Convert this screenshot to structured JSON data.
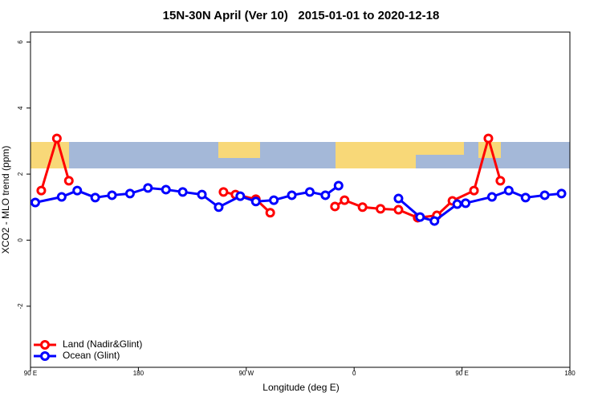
{
  "chart_data": {
    "type": "line",
    "title": "15N-30N April (Ver 10)   2015-01-01 to 2020-12-18",
    "x_label": "Longitude (deg E)",
    "y_label": "XCO2 - MLO trend (ppm)",
    "xlim": [
      90,
      540
    ],
    "xticks": [
      {
        "value": 90,
        "label": "90 E"
      },
      180,
      {
        "value": 270,
        "label": "90 W"
      },
      {
        "value": 360,
        "label": "0"
      },
      {
        "value": 450,
        "label": "90 E"
      },
      {
        "value": 540,
        "label": "180"
      }
    ],
    "ylim": [
      -3.85,
      6.3
    ],
    "yticks": [
      -2,
      0,
      2,
      4,
      6
    ],
    "legend": "bottom-left",
    "series": [
      {
        "name": "Land (Nadir&Glint)",
        "color": "#ff0000",
        "x": [
          99,
          112,
          122,
          null,
          251,
          261,
          278,
          290,
          null,
          344,
          352,
          367,
          382,
          397,
          413,
          429,
          442,
          460,
          472,
          482
        ],
        "values": [
          1.5,
          3.08,
          1.8,
          null,
          1.46,
          1.38,
          1.24,
          0.83,
          null,
          1.02,
          1.21,
          1.0,
          0.95,
          0.92,
          0.68,
          0.75,
          1.19,
          1.5,
          3.08,
          1.8
        ]
      },
      {
        "name": "Ocean (Glint)",
        "color": "#0000ff",
        "x": [
          94,
          116,
          129,
          144,
          158,
          173,
          188,
          203,
          217,
          233,
          247,
          265,
          278,
          293,
          308,
          323,
          336,
          347,
          null,
          397,
          415,
          427,
          446,
          453,
          475,
          489,
          503,
          519,
          533
        ],
        "values": [
          1.14,
          1.31,
          1.5,
          1.29,
          1.36,
          1.41,
          1.58,
          1.53,
          1.46,
          1.38,
          1.0,
          1.33,
          1.17,
          1.21,
          1.36,
          1.46,
          1.36,
          1.65,
          null,
          1.26,
          0.7,
          0.58,
          1.09,
          1.12,
          1.31,
          1.5,
          1.29,
          1.36,
          1.41
        ]
      }
    ]
  }
}
